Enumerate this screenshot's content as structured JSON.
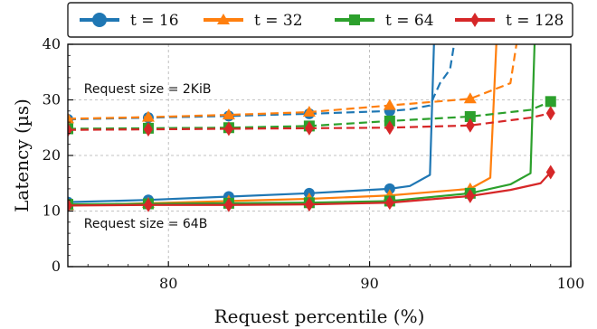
{
  "chart_data": {
    "type": "line",
    "title": "",
    "xlabel": "Request percentile (%)",
    "ylabel": "Latency (µs)",
    "xlim": [
      75,
      100
    ],
    "ylim": [
      0,
      40
    ],
    "xticks": [
      80,
      90,
      100
    ],
    "yticks": [
      0,
      10,
      20,
      30,
      40
    ],
    "grid": true,
    "legend": "top",
    "annotations": [
      {
        "text": "Request size = 2KiB",
        "x": 75.8,
        "y": 31.2
      },
      {
        "text": "Request size = 64B",
        "x": 75.8,
        "y": 7.0
      }
    ],
    "series": [
      {
        "name": "t = 16",
        "color": "#1f77b4",
        "marker": "circle",
        "linestyle": "solid",
        "group": "64B",
        "x": [
          75,
          79,
          83,
          87,
          91,
          92,
          93,
          93.2
        ],
        "y": [
          11.6,
          12.0,
          12.6,
          13.2,
          14.0,
          14.5,
          16.5,
          40
        ]
      },
      {
        "name": "t = 16",
        "color": "#1f77b4",
        "marker": "circle",
        "linestyle": "dashed",
        "group": "2KiB",
        "x": [
          75,
          79,
          83,
          87,
          91,
          92,
          93,
          93.5,
          94,
          94.2
        ],
        "y": [
          26.5,
          26.8,
          27.1,
          27.5,
          28.0,
          28.3,
          29.0,
          33.0,
          35.5,
          40
        ]
      },
      {
        "name": "t = 32",
        "color": "#ff7f0e",
        "marker": "triangle",
        "linestyle": "solid",
        "group": "64B",
        "x": [
          75,
          79,
          83,
          87,
          91,
          95,
          96,
          96.3
        ],
        "y": [
          11.0,
          11.4,
          11.8,
          12.2,
          12.8,
          14.0,
          16.0,
          40
        ]
      },
      {
        "name": "t = 32",
        "color": "#ff7f0e",
        "marker": "triangle",
        "linestyle": "dashed",
        "group": "2KiB",
        "x": [
          75,
          79,
          83,
          87,
          91,
          95,
          97,
          97.3
        ],
        "y": [
          26.6,
          26.9,
          27.3,
          27.8,
          29.0,
          30.2,
          33.0,
          40
        ]
      },
      {
        "name": "t = 64",
        "color": "#2ca02c",
        "marker": "square",
        "linestyle": "solid",
        "group": "64B",
        "x": [
          75,
          79,
          83,
          87,
          91,
          95,
          97,
          98,
          98.2
        ],
        "y": [
          11.2,
          11.3,
          11.4,
          11.5,
          11.8,
          13.2,
          14.8,
          16.8,
          40
        ]
      },
      {
        "name": "t = 64",
        "color": "#2ca02c",
        "marker": "square",
        "linestyle": "dashed",
        "group": "2KiB",
        "x": [
          75,
          79,
          83,
          87,
          91,
          95,
          98,
          99
        ],
        "y": [
          24.8,
          24.9,
          25.0,
          25.3,
          26.2,
          27.0,
          28.2,
          29.7
        ]
      },
      {
        "name": "t = 128",
        "color": "#d62728",
        "marker": "diamond",
        "linestyle": "solid",
        "group": "64B",
        "x": [
          75,
          79,
          83,
          87,
          91,
          95,
          97,
          98.5,
          99
        ],
        "y": [
          11.0,
          11.1,
          11.1,
          11.2,
          11.5,
          12.7,
          13.8,
          15.0,
          17.0
        ]
      },
      {
        "name": "t = 128",
        "color": "#d62728",
        "marker": "diamond",
        "linestyle": "dashed",
        "group": "2KiB",
        "x": [
          75,
          79,
          83,
          87,
          91,
          95,
          98,
          99
        ],
        "y": [
          24.6,
          24.7,
          24.8,
          24.9,
          25.0,
          25.4,
          26.8,
          27.6
        ]
      }
    ]
  },
  "legend_items": [
    {
      "label": "t = 16",
      "color": "#1f77b4",
      "marker": "circle"
    },
    {
      "label": "t = 32",
      "color": "#ff7f0e",
      "marker": "triangle"
    },
    {
      "label": "t = 64",
      "color": "#2ca02c",
      "marker": "square"
    },
    {
      "label": "t = 128",
      "color": "#d62728",
      "marker": "diamond"
    }
  ]
}
